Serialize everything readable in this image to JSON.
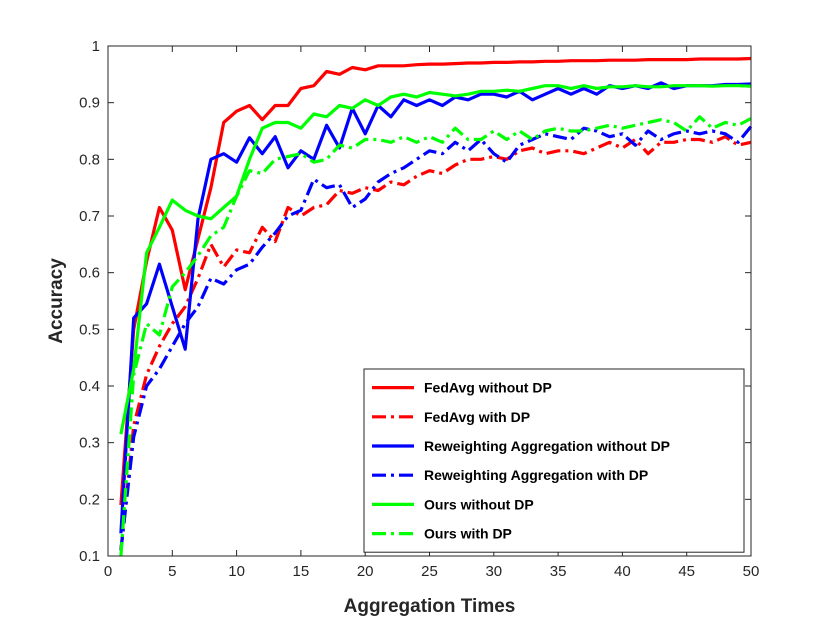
{
  "chart_data": {
    "type": "line",
    "title": "",
    "xlabel": "Aggregation Times",
    "ylabel": "Accuracy",
    "xlim": [
      0,
      50
    ],
    "ylim": [
      0.1,
      1
    ],
    "xticks": [
      0,
      5,
      10,
      15,
      20,
      25,
      30,
      35,
      40,
      45,
      50
    ],
    "yticks": [
      0.1,
      0.2,
      0.3,
      0.4,
      0.5,
      0.6,
      0.7,
      0.8,
      0.9,
      1
    ],
    "xtick_labels": [
      "0",
      "5",
      "10",
      "15",
      "20",
      "25",
      "30",
      "35",
      "40",
      "45",
      "50"
    ],
    "ytick_labels": [
      "0.1",
      "0.2",
      "0.3",
      "0.4",
      "0.5",
      "0.6",
      "0.7",
      "0.8",
      "0.9",
      "1"
    ],
    "grid": false,
    "legend_position": "bottom-right",
    "x": [
      1,
      2,
      3,
      4,
      5,
      6,
      7,
      8,
      9,
      10,
      11,
      12,
      13,
      14,
      15,
      16,
      17,
      18,
      19,
      20,
      21,
      22,
      23,
      24,
      25,
      26,
      27,
      28,
      29,
      30,
      31,
      32,
      33,
      34,
      35,
      36,
      37,
      38,
      39,
      40,
      41,
      42,
      43,
      44,
      45,
      46,
      47,
      48,
      49,
      50
    ],
    "series": [
      {
        "name": "FedAvg without DP",
        "color": "#ff0000",
        "style": "solid",
        "values": [
          0.19,
          0.5,
          0.62,
          0.715,
          0.675,
          0.57,
          0.66,
          0.75,
          0.865,
          0.885,
          0.895,
          0.87,
          0.895,
          0.895,
          0.925,
          0.93,
          0.955,
          0.95,
          0.962,
          0.958,
          0.965,
          0.965,
          0.965,
          0.967,
          0.968,
          0.968,
          0.969,
          0.97,
          0.97,
          0.971,
          0.971,
          0.972,
          0.972,
          0.973,
          0.973,
          0.974,
          0.974,
          0.974,
          0.975,
          0.975,
          0.975,
          0.976,
          0.976,
          0.976,
          0.976,
          0.977,
          0.977,
          0.977,
          0.977,
          0.978
        ]
      },
      {
        "name": "FedAvg with DP",
        "color": "#ff0000",
        "style": "dashdot",
        "values": [
          0.11,
          0.33,
          0.42,
          0.47,
          0.51,
          0.54,
          0.59,
          0.65,
          0.61,
          0.64,
          0.635,
          0.68,
          0.655,
          0.715,
          0.7,
          0.715,
          0.72,
          0.745,
          0.74,
          0.75,
          0.745,
          0.76,
          0.755,
          0.77,
          0.78,
          0.775,
          0.79,
          0.8,
          0.8,
          0.805,
          0.8,
          0.815,
          0.82,
          0.81,
          0.815,
          0.815,
          0.81,
          0.82,
          0.83,
          0.82,
          0.835,
          0.81,
          0.83,
          0.83,
          0.835,
          0.835,
          0.83,
          0.84,
          0.825,
          0.83
        ]
      },
      {
        "name": "Reweighting Aggregation without DP",
        "color": "#0000ff",
        "style": "solid",
        "values": [
          0.14,
          0.52,
          0.545,
          0.615,
          0.54,
          0.465,
          0.695,
          0.8,
          0.81,
          0.795,
          0.838,
          0.81,
          0.84,
          0.785,
          0.815,
          0.8,
          0.86,
          0.82,
          0.89,
          0.845,
          0.895,
          0.875,
          0.905,
          0.895,
          0.905,
          0.895,
          0.91,
          0.905,
          0.915,
          0.915,
          0.91,
          0.92,
          0.905,
          0.915,
          0.925,
          0.915,
          0.925,
          0.915,
          0.93,
          0.925,
          0.93,
          0.925,
          0.935,
          0.925,
          0.93,
          0.93,
          0.93,
          0.932,
          0.932,
          0.933
        ]
      },
      {
        "name": "Reweighting Aggregation with DP",
        "color": "#0000ff",
        "style": "dashdot",
        "values": [
          0.11,
          0.31,
          0.4,
          0.43,
          0.47,
          0.51,
          0.54,
          0.59,
          0.58,
          0.605,
          0.615,
          0.645,
          0.67,
          0.7,
          0.71,
          0.765,
          0.75,
          0.755,
          0.715,
          0.73,
          0.76,
          0.775,
          0.785,
          0.8,
          0.815,
          0.81,
          0.83,
          0.815,
          0.835,
          0.81,
          0.795,
          0.825,
          0.835,
          0.845,
          0.84,
          0.835,
          0.855,
          0.85,
          0.84,
          0.845,
          0.825,
          0.85,
          0.835,
          0.845,
          0.85,
          0.845,
          0.85,
          0.845,
          0.83,
          0.858
        ]
      },
      {
        "name": "Ours without DP",
        "color": "#00ff00",
        "style": "solid",
        "values": [
          0.315,
          0.43,
          0.635,
          0.68,
          0.728,
          0.71,
          0.7,
          0.695,
          0.715,
          0.735,
          0.8,
          0.855,
          0.865,
          0.865,
          0.855,
          0.88,
          0.875,
          0.895,
          0.89,
          0.905,
          0.895,
          0.91,
          0.915,
          0.91,
          0.918,
          0.915,
          0.912,
          0.915,
          0.92,
          0.92,
          0.922,
          0.92,
          0.925,
          0.93,
          0.93,
          0.925,
          0.93,
          0.925,
          0.928,
          0.928,
          0.93,
          0.928,
          0.928,
          0.93,
          0.93,
          0.93,
          0.929,
          0.93,
          0.93,
          0.929
        ]
      },
      {
        "name": "Ours with DP",
        "color": "#00ff00",
        "style": "dashdot",
        "values": [
          0.1,
          0.42,
          0.51,
          0.49,
          0.575,
          0.6,
          0.63,
          0.665,
          0.68,
          0.735,
          0.78,
          0.775,
          0.8,
          0.805,
          0.81,
          0.795,
          0.8,
          0.825,
          0.82,
          0.835,
          0.835,
          0.83,
          0.84,
          0.83,
          0.84,
          0.83,
          0.855,
          0.835,
          0.835,
          0.85,
          0.835,
          0.85,
          0.835,
          0.85,
          0.855,
          0.85,
          0.85,
          0.855,
          0.86,
          0.855,
          0.86,
          0.865,
          0.87,
          0.865,
          0.85,
          0.875,
          0.855,
          0.865,
          0.86,
          0.872
        ]
      }
    ]
  }
}
